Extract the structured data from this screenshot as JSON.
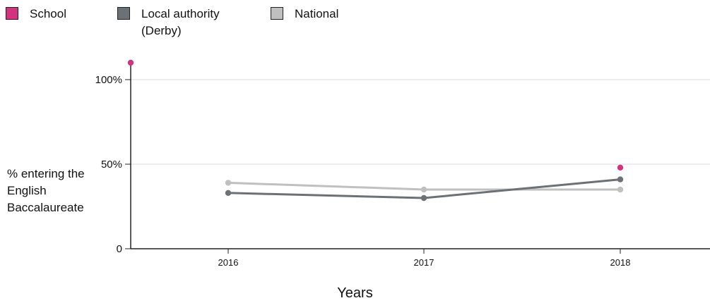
{
  "chart_data": {
    "type": "line",
    "categories": [
      "2016",
      "2017",
      "2018"
    ],
    "series": [
      {
        "name": "School",
        "color": "#d6317f",
        "values": [
          null,
          null,
          48
        ],
        "connect": false
      },
      {
        "name": "Local authority (Derby)",
        "color": "#6c7176",
        "values": [
          33,
          30,
          41
        ],
        "connect": true
      },
      {
        "name": "National",
        "color": "#c0c0c0",
        "values": [
          39,
          35,
          35
        ],
        "connect": true
      }
    ],
    "extra_points": [
      {
        "series": "School",
        "x_position": "left edge of plot",
        "y": 110
      }
    ],
    "xlabel": "Years",
    "ylabel": "% entering the English Baccalaureate",
    "yticks": [
      {
        "value": 0,
        "label": "0"
      },
      {
        "value": 50,
        "label": "50%"
      },
      {
        "value": 100,
        "label": "100%"
      }
    ],
    "ylim": [
      0,
      110
    ],
    "grid": true,
    "legend_position": "top-left"
  },
  "legend": {
    "items": [
      {
        "label": "School",
        "color": "#d6317f"
      },
      {
        "label": "Local authority (Derby)",
        "color": "#6c7176"
      },
      {
        "label": "National",
        "color": "#c0c0c0"
      }
    ]
  }
}
